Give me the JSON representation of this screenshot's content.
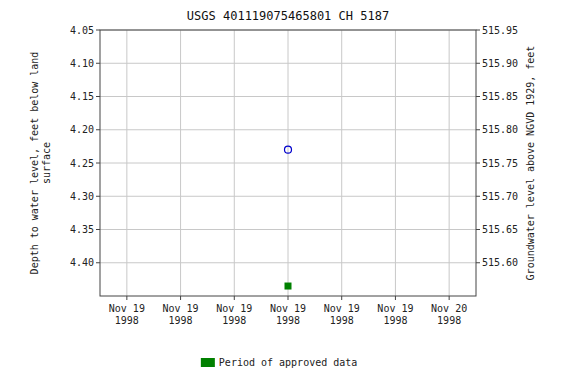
{
  "chart_data": {
    "type": "scatter",
    "title": "USGS 401119075465801 CH  5187",
    "y_label": "Depth to water level, feet below land\nsurface",
    "y2_label": "Groundwater level above NGVD 1929, feet",
    "categories": [
      "Nov 19\n1998",
      "Nov 19\n1998",
      "Nov 19\n1998",
      "Nov 19\n1998",
      "Nov 19\n1998",
      "Nov 19\n1998",
      "Nov 20\n1998"
    ],
    "ylim": [
      4.45,
      4.05
    ],
    "yticks": [
      4.05,
      {
        "value": 4.1,
        "label": "4.10"
      },
      4.15,
      {
        "value": 4.2,
        "label": "4.20"
      },
      4.25,
      {
        "value": 4.3,
        "label": "4.30"
      },
      4.35,
      {
        "value": 4.4,
        "label": "4.40"
      }
    ],
    "y2lim": [
      515.55,
      515.95
    ],
    "y2ticks": [
      515.95,
      {
        "value": 515.9,
        "label": "515.90"
      },
      515.85,
      {
        "value": 515.8,
        "label": "515.80"
      },
      515.75,
      {
        "value": 515.7,
        "label": "515.70"
      },
      515.65,
      {
        "value": 515.6,
        "label": "515.60"
      }
    ],
    "grid": true,
    "grid_color": "#c8c8c8",
    "legend": "bottom",
    "series": [
      {
        "color": "#0000cc",
        "marker": "open-circle",
        "values": [
          null,
          null,
          null,
          4.23,
          null,
          null,
          null
        ]
      },
      {
        "name": "Period of approved data",
        "color": "#008000",
        "marker": "square",
        "values": [
          null,
          null,
          null,
          4.435,
          null,
          null,
          null
        ]
      }
    ]
  }
}
